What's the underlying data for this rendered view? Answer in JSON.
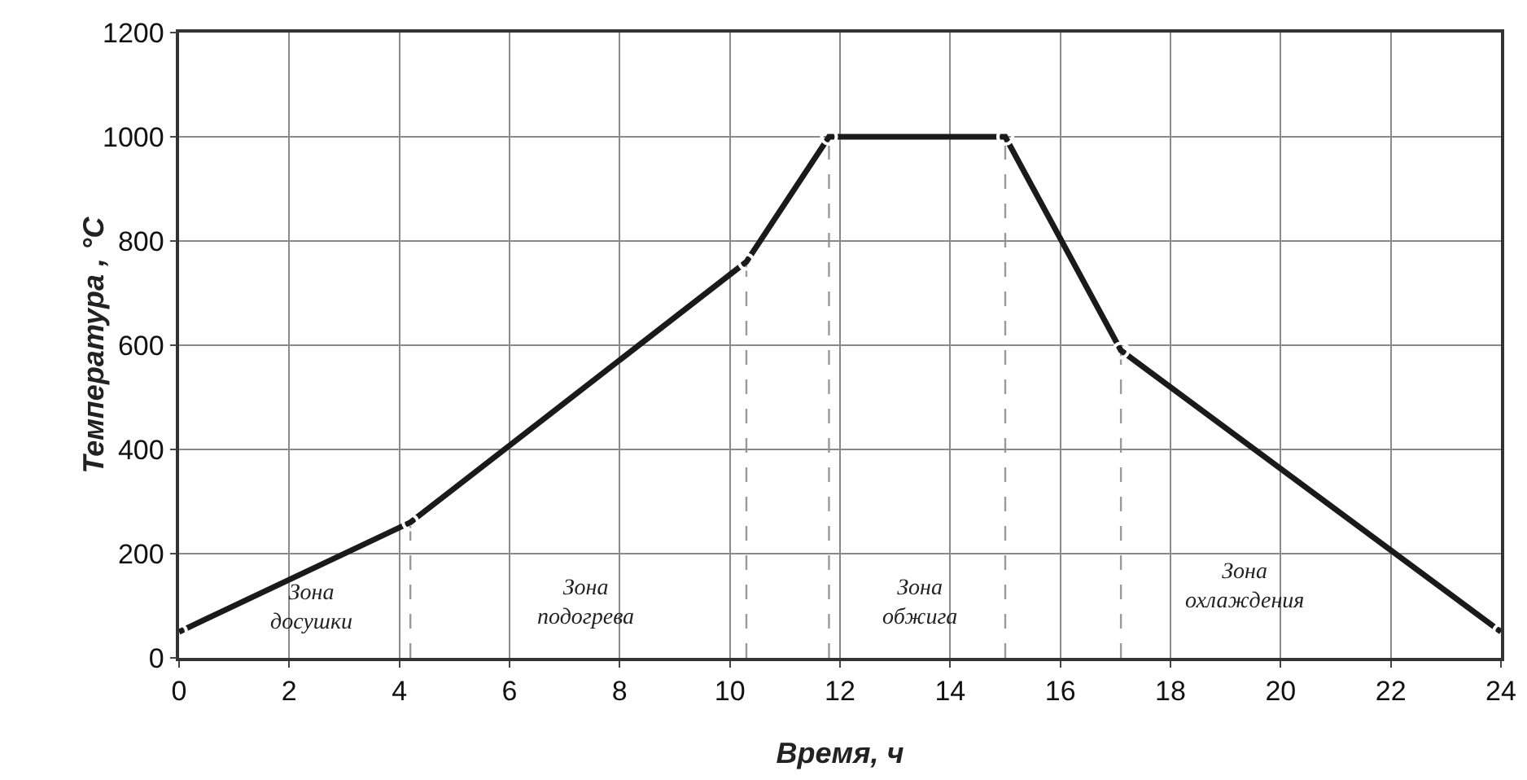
{
  "chart_data": {
    "type": "line",
    "xlabel": "Время, ч",
    "ylabel": "Температура , °C",
    "x": [
      0,
      4.2,
      10.3,
      11.8,
      15,
      17.1,
      24
    ],
    "series": [
      {
        "color": "#1a1a1a",
        "values": [
          50,
          260,
          760,
          1000,
          1000,
          590,
          50
        ]
      }
    ],
    "xlim": [
      0,
      24
    ],
    "xticks": [
      0,
      2,
      4,
      6,
      8,
      10,
      12,
      14,
      16,
      18,
      20,
      22,
      24
    ],
    "ylim": [
      0,
      1200
    ],
    "yticks": [
      0,
      200,
      400,
      600,
      800,
      1000,
      1200
    ],
    "grid": true,
    "marker": "circle",
    "line_style": "solid",
    "ref_lines": [
      {
        "axis": "x",
        "value": 4.2,
        "label": null,
        "line_style": "dashed",
        "color": "#9a9a9a"
      },
      {
        "axis": "x",
        "value": 10.3,
        "label": null,
        "line_style": "dashed",
        "color": "#9a9a9a"
      },
      {
        "axis": "x",
        "value": 11.8,
        "label": null,
        "line_style": "dashed",
        "color": "#9a9a9a"
      },
      {
        "axis": "x",
        "value": 15,
        "label": null,
        "line_style": "dashed",
        "color": "#9a9a9a"
      },
      {
        "axis": "x",
        "value": 17.1,
        "label": null,
        "line_style": "dashed",
        "color": "#9a9a9a"
      }
    ],
    "annotations": [
      "Зона\nдосушки",
      "Зона\nподогрева",
      "Зона\nобжига",
      "Зона\nохлаждения"
    ]
  }
}
